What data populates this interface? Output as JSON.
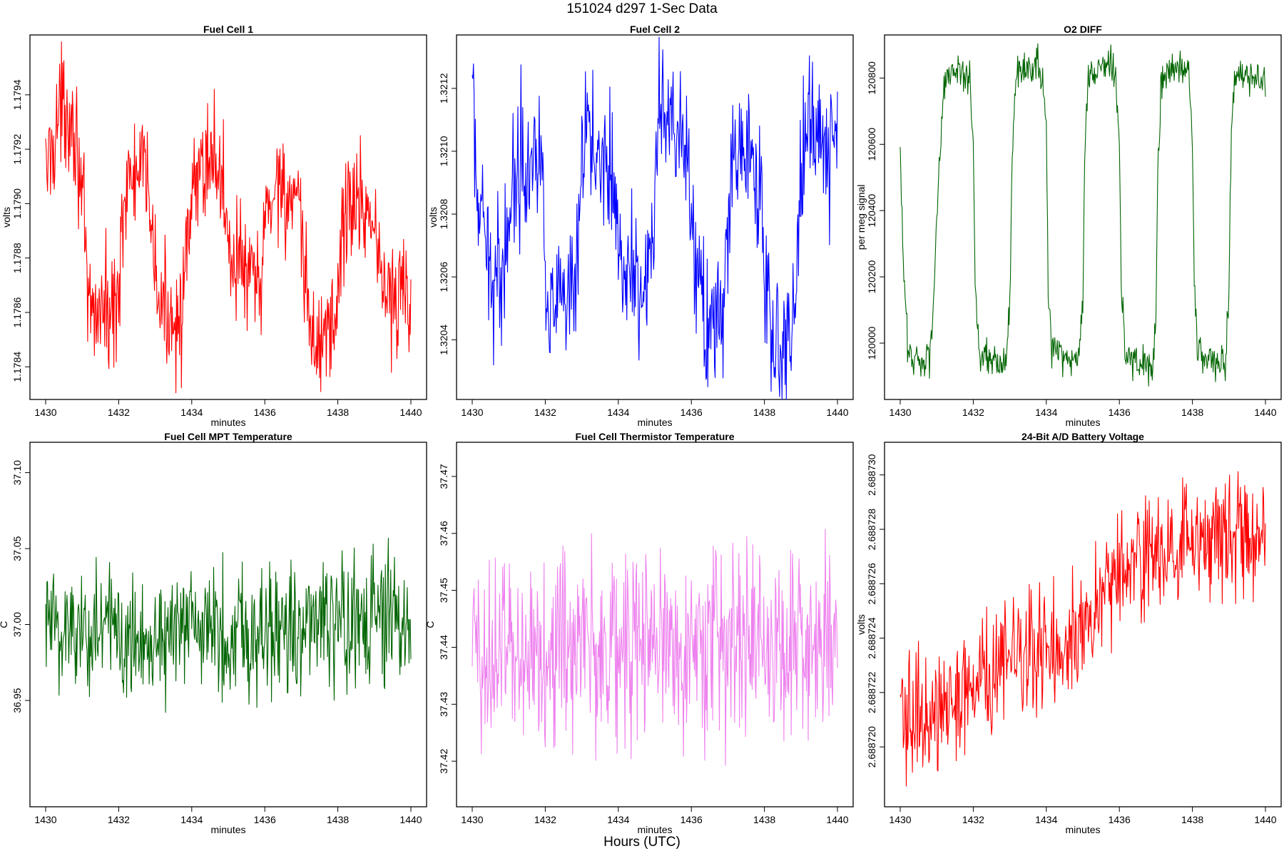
{
  "figure": {
    "title": "151024   d297   1-Sec Data",
    "xlabel": "Hours (UTC)"
  },
  "chart_data": [
    {
      "type": "line",
      "title": "Fuel Cell 1",
      "xlabel": "minutes",
      "ylabel": "volts",
      "color": "#ff0000",
      "xlim": [
        1430,
        1440
      ],
      "ylim": [
        1.17828,
        1.17962
      ],
      "xticks": [
        1430,
        1432,
        1434,
        1436,
        1438,
        1440
      ],
      "yticks": [
        1.1784,
        1.1786,
        1.1788,
        1.179,
        1.1792,
        1.1794
      ],
      "ytick_labels": [
        "1.1784",
        "1.1786",
        "1.1788",
        "1.1790",
        "1.1792",
        "1.1794"
      ],
      "noise": 0.00011,
      "x": [
        1430.0,
        1430.3,
        1430.5,
        1430.7,
        1430.9,
        1431.05,
        1431.15,
        1431.3,
        1431.5,
        1431.7,
        1431.9,
        1432.0,
        1432.1,
        1432.4,
        1432.7,
        1432.9,
        1433.0,
        1433.2,
        1433.5,
        1433.7,
        1433.9,
        1434.0,
        1434.2,
        1434.5,
        1434.8,
        1435.0,
        1435.1,
        1435.3,
        1435.6,
        1435.9,
        1436.0,
        1436.1,
        1436.4,
        1436.7,
        1437.0,
        1437.1,
        1437.3,
        1437.6,
        1437.9,
        1438.0,
        1438.1,
        1438.3,
        1438.6,
        1438.9,
        1439.0,
        1439.1,
        1439.3,
        1439.6,
        1439.8,
        1440.0
      ],
      "y": [
        1.1791,
        1.1793,
        1.17935,
        1.17935,
        1.1792,
        1.1789,
        1.1786,
        1.1786,
        1.17862,
        1.1786,
        1.1786,
        1.1787,
        1.179,
        1.1791,
        1.1791,
        1.179,
        1.1787,
        1.1786,
        1.1786,
        1.1786,
        1.1788,
        1.179,
        1.1791,
        1.1792,
        1.1791,
        1.1789,
        1.1788,
        1.1788,
        1.1787,
        1.1787,
        1.1789,
        1.179,
        1.1791,
        1.179,
        1.1789,
        1.1787,
        1.1785,
        1.1785,
        1.1786,
        1.1786,
        1.1789,
        1.179,
        1.179,
        1.179,
        1.1789,
        1.1788,
        1.1787,
        1.1786,
        1.1787,
        1.1786
      ]
    },
    {
      "type": "line",
      "title": "Fuel Cell 2",
      "xlabel": "minutes",
      "ylabel": "volts",
      "color": "#0000ff",
      "xlim": [
        1430,
        1440
      ],
      "ylim": [
        1.32021,
        1.32137
      ],
      "xticks": [
        1430,
        1432,
        1434,
        1436,
        1438,
        1440
      ],
      "yticks": [
        1.3204,
        1.3206,
        1.3208,
        1.321,
        1.3212
      ],
      "ytick_labels": [
        "1.3204",
        "1.3206",
        "1.3208",
        "1.3210",
        "1.3212"
      ],
      "noise": 0.00011,
      "x": [
        1430.0,
        1430.1,
        1430.3,
        1430.6,
        1430.8,
        1430.9,
        1431.1,
        1431.4,
        1431.7,
        1431.9,
        1432.0,
        1432.1,
        1432.4,
        1432.7,
        1432.9,
        1433.0,
        1433.1,
        1433.4,
        1433.7,
        1433.9,
        1434.0,
        1434.2,
        1434.5,
        1434.8,
        1435.0,
        1435.1,
        1435.3,
        1435.6,
        1435.9,
        1436.0,
        1436.1,
        1436.4,
        1436.7,
        1436.9,
        1437.0,
        1437.1,
        1437.4,
        1437.7,
        1437.9,
        1438.0,
        1438.1,
        1438.4,
        1438.7,
        1438.9,
        1439.0,
        1439.1,
        1439.4,
        1439.7,
        1440.0
      ],
      "y": [
        1.3212,
        1.3209,
        1.3207,
        1.3206,
        1.3206,
        1.3207,
        1.3209,
        1.321,
        1.321,
        1.321,
        1.3207,
        1.3205,
        1.3205,
        1.3205,
        1.3206,
        1.3209,
        1.3211,
        1.321,
        1.321,
        1.3209,
        1.3207,
        1.3206,
        1.3206,
        1.3206,
        1.3208,
        1.3211,
        1.3211,
        1.321,
        1.321,
        1.3208,
        1.3206,
        1.3205,
        1.3204,
        1.3205,
        1.3207,
        1.321,
        1.321,
        1.321,
        1.3208,
        1.3206,
        1.3205,
        1.3204,
        1.3204,
        1.3206,
        1.3209,
        1.3211,
        1.3211,
        1.321,
        1.321
      ]
    },
    {
      "type": "line",
      "title": "O2 DIFF",
      "xlabel": "minutes",
      "ylabel": "per meg signal",
      "color": "#006400",
      "xlim": [
        1430,
        1440
      ],
      "ylim": [
        119830,
        120930
      ],
      "xticks": [
        1430,
        1432,
        1434,
        1436,
        1438,
        1440
      ],
      "yticks": [
        120000,
        120200,
        120400,
        120600,
        120800
      ],
      "ytick_labels": [
        "120000",
        "120200",
        "120400",
        "120600",
        "120800"
      ],
      "noise": 28,
      "x": [
        1430.0,
        1430.1,
        1430.2,
        1430.4,
        1430.6,
        1430.8,
        1430.9,
        1431.05,
        1431.2,
        1431.4,
        1431.6,
        1431.9,
        1432.0,
        1432.05,
        1432.15,
        1432.4,
        1432.7,
        1432.9,
        1433.0,
        1433.05,
        1433.15,
        1433.4,
        1433.7,
        1433.9,
        1434.0,
        1434.05,
        1434.15,
        1434.4,
        1434.7,
        1434.9,
        1435.0,
        1435.05,
        1435.15,
        1435.4,
        1435.7,
        1435.9,
        1436.0,
        1436.05,
        1436.15,
        1436.4,
        1436.7,
        1436.9,
        1437.0,
        1437.05,
        1437.15,
        1437.4,
        1437.7,
        1437.9,
        1438.0,
        1438.05,
        1438.15,
        1438.4,
        1438.7,
        1438.9,
        1439.0,
        1439.05,
        1439.15,
        1439.5,
        1440.0
      ],
      "y": [
        120550,
        120200,
        119990,
        119950,
        119950,
        119960,
        120100,
        120500,
        120800,
        120810,
        120810,
        120810,
        120600,
        120200,
        119980,
        119960,
        119940,
        119940,
        120100,
        120500,
        120800,
        120820,
        120830,
        120820,
        120600,
        120200,
        119980,
        119960,
        119950,
        119950,
        120150,
        120550,
        120800,
        120830,
        120840,
        120820,
        120600,
        120200,
        119970,
        119950,
        119930,
        119920,
        120100,
        120500,
        120790,
        120820,
        120830,
        120810,
        120600,
        120200,
        119970,
        119950,
        119940,
        119940,
        120150,
        120550,
        120800,
        120810,
        120790
      ]
    },
    {
      "type": "line",
      "title": "Fuel Cell MPT Temperature",
      "xlabel": "minutes",
      "ylabel": "C",
      "color": "#006400",
      "xlim": [
        1430,
        1440
      ],
      "ylim": [
        36.88,
        37.12
      ],
      "xticks": [
        1430,
        1432,
        1434,
        1436,
        1438,
        1440
      ],
      "yticks": [
        36.95,
        37.0,
        37.05,
        37.1
      ],
      "ytick_labels": [
        "36.95",
        "37.00",
        "37.05",
        "37.10"
      ],
      "noise": 0.022,
      "x": [
        1430,
        1432,
        1434,
        1436,
        1438,
        1440
      ],
      "y": [
        37.0,
        36.995,
        36.995,
        36.997,
        37.0,
        37.0
      ]
    },
    {
      "type": "line",
      "title": "Fuel Cell Thermistor Temperature",
      "xlabel": "minutes",
      "ylabel": "C",
      "color": "#ee82ee",
      "xlim": [
        1430,
        1440
      ],
      "ylim": [
        37.412,
        37.476
      ],
      "xticks": [
        1430,
        1432,
        1434,
        1436,
        1438,
        1440
      ],
      "yticks": [
        37.42,
        37.43,
        37.44,
        37.45,
        37.46,
        37.47
      ],
      "ytick_labels": [
        "37.42",
        "37.43",
        "37.44",
        "37.45",
        "37.46",
        "37.47"
      ],
      "noise": 0.0085,
      "x": [
        1430,
        1432,
        1434,
        1436,
        1438,
        1440
      ],
      "y": [
        37.439,
        37.44,
        37.44,
        37.441,
        37.441,
        37.44
      ]
    },
    {
      "type": "line",
      "title": "24-Bit A/D Battery Voltage",
      "xlabel": "minutes",
      "ylabel": "volts",
      "color": "#ff0000",
      "xlim": [
        1430,
        1440
      ],
      "ylim": [
        2.6887178,
        2.6887312
      ],
      "xticks": [
        1430,
        1432,
        1434,
        1436,
        1438,
        1440
      ],
      "yticks": [
        2.68872,
        2.688722,
        2.688724,
        2.688726,
        2.688728,
        2.68873
      ],
      "ytick_labels": [
        "2.688720",
        "2.688722",
        "2.688724",
        "2.688726",
        "2.688728",
        "2.688730"
      ],
      "noise": 1.1e-06,
      "x": [
        1430,
        1431,
        1432,
        1433,
        1434,
        1435,
        1435.5,
        1436,
        1437,
        1438,
        1439,
        1440
      ],
      "y": [
        2.688721,
        2.6887213,
        2.6887222,
        2.6887232,
        2.6887238,
        2.6887243,
        2.6887255,
        2.6887265,
        2.688727,
        2.6887273,
        2.6887276,
        2.688728
      ]
    }
  ]
}
